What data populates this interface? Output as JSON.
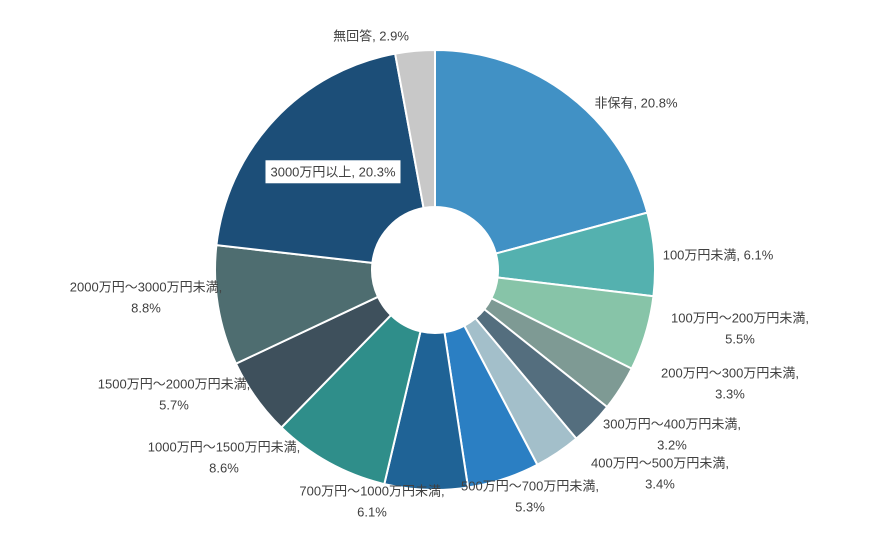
{
  "chart_data": {
    "type": "pie",
    "subtype": "donut",
    "title": "",
    "legend": "none",
    "label_format": "name, value%",
    "stroke_color": "#ffffff",
    "text_color": "#404040",
    "slices": [
      {
        "label": "非保有",
        "value": 20.8,
        "color": "#4191c5"
      },
      {
        "label": "100万円未満",
        "value": 6.1,
        "color": "#54b1af"
      },
      {
        "label": "100万円～200万円未満",
        "value": 5.5,
        "color": "#87c4a8"
      },
      {
        "label": "200万円～300万円未満",
        "value": 3.3,
        "color": "#7e9a94"
      },
      {
        "label": "300万円～400万円未満",
        "value": 3.2,
        "color": "#546e7e"
      },
      {
        "label": "400万円～500万円未満",
        "value": 3.4,
        "color": "#a3bfca"
      },
      {
        "label": "500万円～700万円未満",
        "value": 5.3,
        "color": "#2b7fc3"
      },
      {
        "label": "700万円～1000万円未満",
        "value": 6.1,
        "color": "#1f6396"
      },
      {
        "label": "1000万円～1500万円未満",
        "value": 8.6,
        "color": "#2f8e8a"
      },
      {
        "label": "1500万円～2000万円未満",
        "value": 5.7,
        "color": "#3e505c"
      },
      {
        "label": "2000万円～3000万円未満",
        "value": 8.8,
        "color": "#4e6d70"
      },
      {
        "label": "3000万円以上",
        "value": 20.3,
        "color": "#1c4e78"
      },
      {
        "label": "無回答",
        "value": 2.9,
        "color": "#c8c8c8"
      }
    ]
  }
}
